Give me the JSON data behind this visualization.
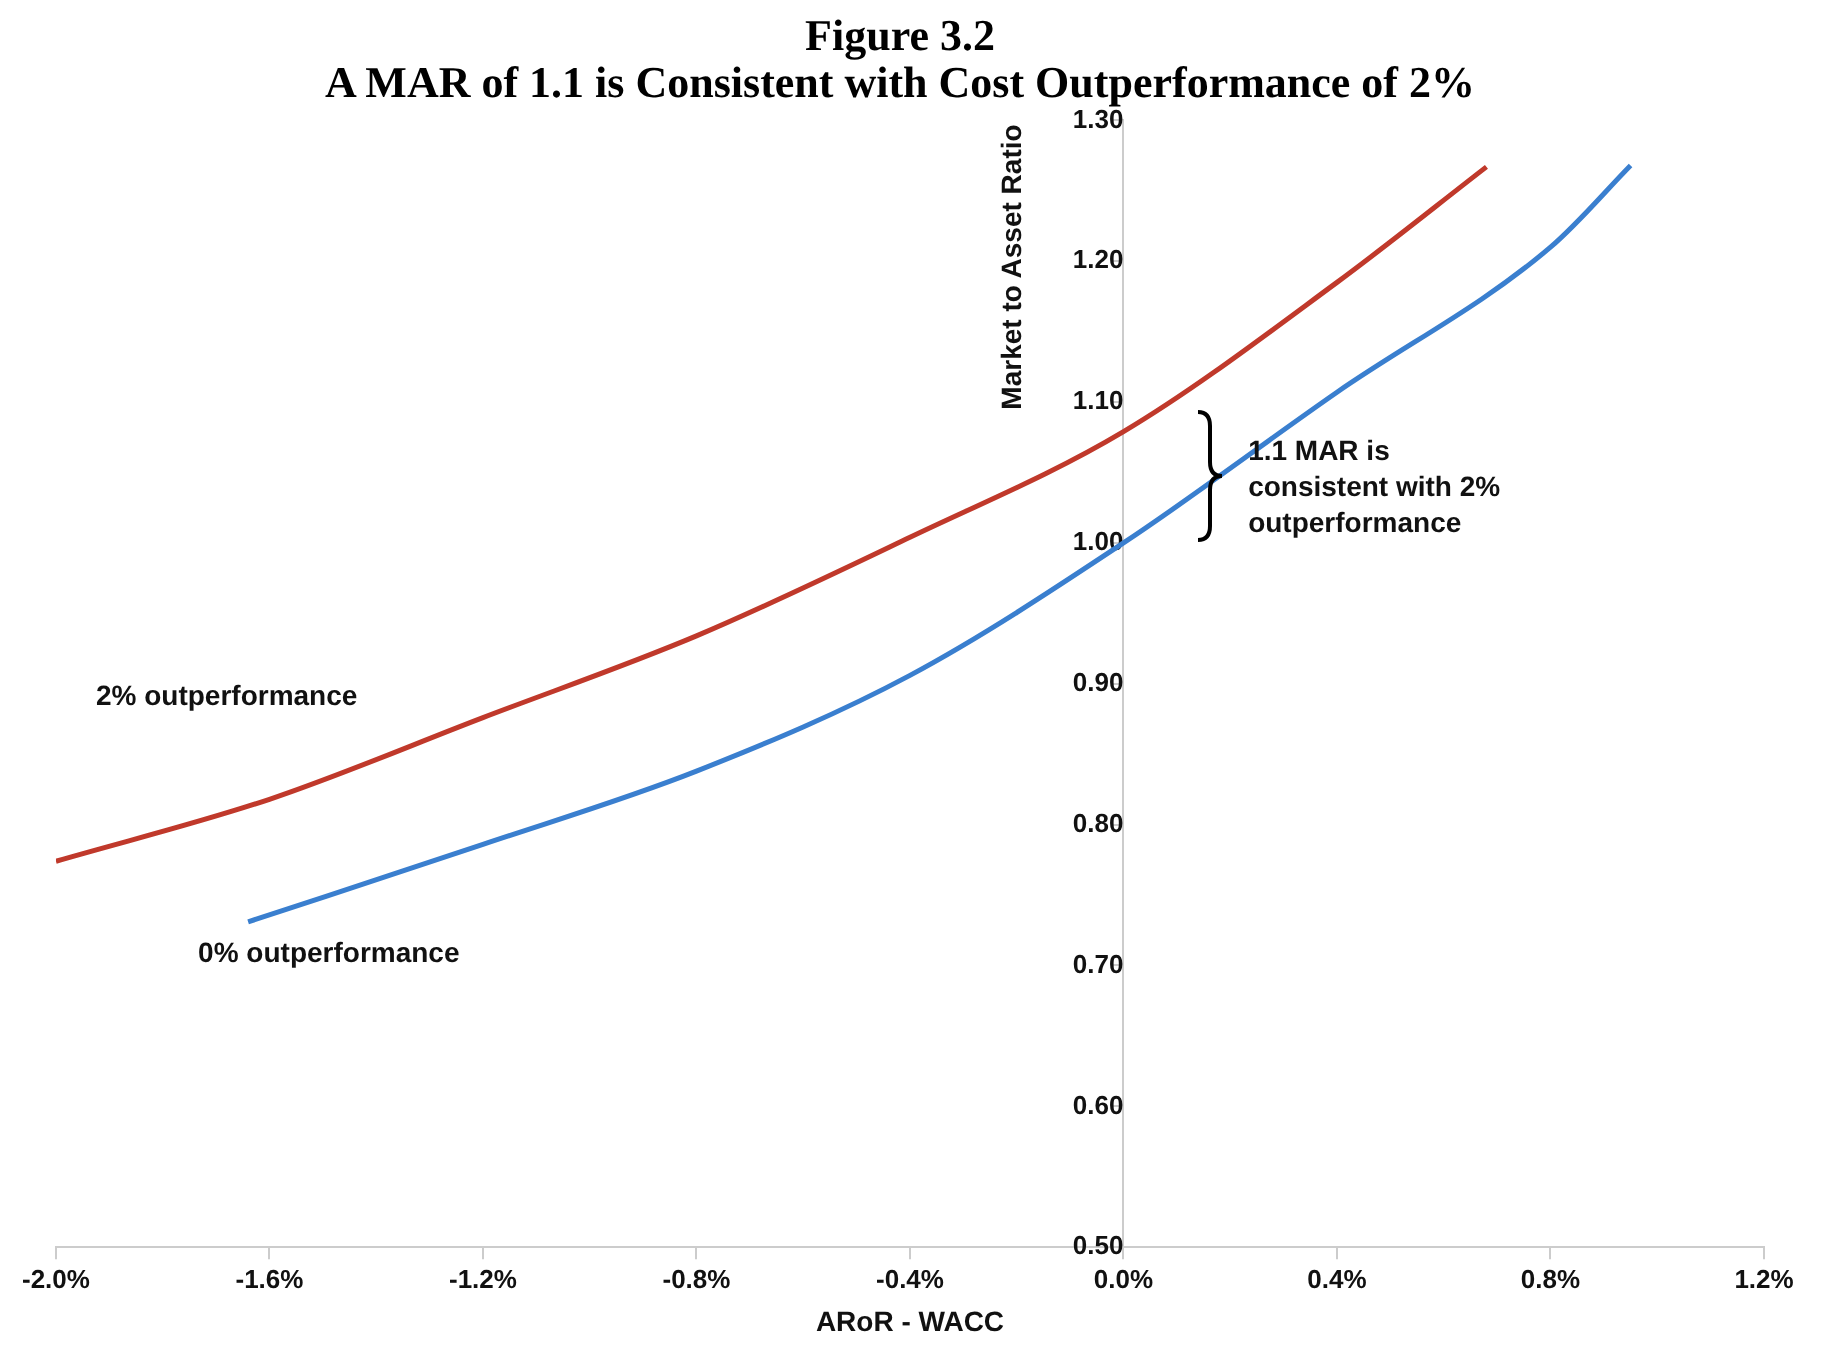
{
  "chart_data": {
    "type": "line",
    "title": [
      "Figure 3.2",
      "A MAR of 1.1 is Consistent with Cost Outperformance of 2%"
    ],
    "xlabel": "ARoR - WACC",
    "ylabel": "Market to Asset Ratio",
    "xlim": [
      -2.0,
      1.2
    ],
    "xticks": [
      {
        "value": -2.0,
        "label": "-2.0%"
      },
      {
        "value": -1.6,
        "label": "-1.6%"
      },
      {
        "value": -1.2,
        "label": "-1.2%"
      },
      {
        "value": -0.8,
        "label": "-0.8%"
      },
      {
        "value": -0.4,
        "label": "-0.4%"
      },
      {
        "value": 0,
        "label": "0.0%"
      },
      {
        "value": 0.4,
        "label": "0.4%"
      },
      {
        "value": 0.8,
        "label": "0.8%"
      },
      {
        "value": 1.2,
        "label": "1.2%"
      }
    ],
    "ylim": [
      0.5,
      1.3
    ],
    "yticks": [
      {
        "value": 0.5,
        "label": "0.50"
      },
      {
        "value": 0.6,
        "label": "0.60"
      },
      {
        "value": 0.7,
        "label": "0.70"
      },
      {
        "value": 0.8,
        "label": "0.80"
      },
      {
        "value": 0.9,
        "label": "0.90"
      },
      {
        "value": 1.0,
        "label": "1.00"
      },
      {
        "value": 1.1,
        "label": "1.10"
      },
      {
        "value": 1.2,
        "label": "1.20"
      },
      {
        "value": 1.3,
        "label": "1.30"
      }
    ],
    "series": [
      {
        "name": "2% outperformance",
        "color": "#c0392b",
        "x": [
          -2.0,
          -1.6,
          -1.2,
          -0.8,
          -0.4,
          0.0,
          0.4,
          0.68
        ],
        "values": [
          0.774,
          0.818,
          0.876,
          0.934,
          1.004,
          1.079,
          1.185,
          1.267
        ]
      },
      {
        "name": "0% outperformance",
        "color": "#3a7fcf",
        "x": [
          -1.64,
          -1.2,
          -0.8,
          -0.4,
          0.0,
          0.4,
          0.8,
          0.95
        ],
        "values": [
          0.731,
          0.786,
          0.838,
          0.906,
          1.0,
          1.107,
          1.21,
          1.268
        ]
      }
    ],
    "annotations": [
      "1.1 MAR is consistent with 2% outperformance"
    ],
    "grid": false,
    "legend": false,
    "marker": "none",
    "line_style": "solid"
  }
}
